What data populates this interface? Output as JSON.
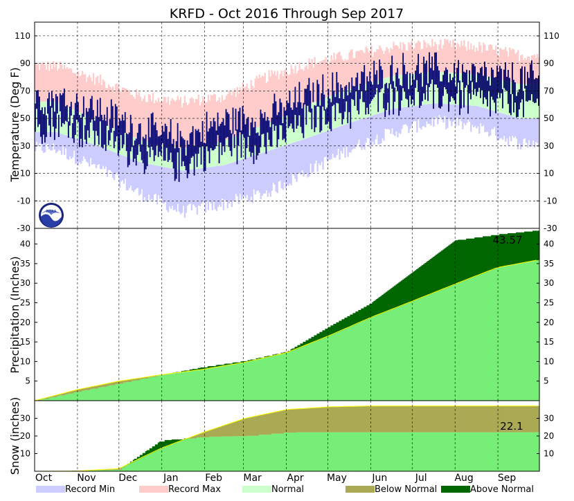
{
  "chart_data": [
    {
      "type": "area",
      "title": "KRFD - Oct 2016 Through Sep 2017",
      "ylabel": "Temperature (Deg F)",
      "ylim": [
        -30,
        120
      ],
      "yticks": [
        -30,
        -10,
        10,
        30,
        50,
        70,
        90,
        110
      ],
      "x_months": [
        "Oct",
        "Nov",
        "Dec",
        "Jan",
        "Feb",
        "Mar",
        "Apr",
        "May",
        "Jun",
        "Jul",
        "Aug",
        "Sep"
      ],
      "grid": true,
      "series": [
        {
          "name": "Record Min",
          "monthly_approx": [
            28,
            14,
            -5,
            -18,
            -12,
            -4,
            12,
            28,
            40,
            48,
            44,
            32
          ]
        },
        {
          "name": "Record Max",
          "monthly_approx": [
            88,
            78,
            66,
            62,
            66,
            80,
            90,
            96,
            102,
            104,
            102,
            96
          ]
        },
        {
          "name": "Normal",
          "monthly_approx": [
            [
              40,
              62
            ],
            [
              30,
              48
            ],
            [
              18,
              34
            ],
            [
              12,
              28
            ],
            [
              16,
              34
            ],
            [
              26,
              46
            ],
            [
              36,
              60
            ],
            [
              47,
              72
            ],
            [
              57,
              81
            ],
            [
              61,
              84
            ],
            [
              59,
              82
            ],
            [
              50,
              75
            ]
          ]
        },
        {
          "name": "Observed Daily Range",
          "monthly_approx": [
            [
              38,
              72
            ],
            [
              28,
              65
            ],
            [
              10,
              55
            ],
            [
              0,
              50
            ],
            [
              18,
              60
            ],
            [
              20,
              62
            ],
            [
              38,
              78
            ],
            [
              45,
              85
            ],
            [
              55,
              95
            ],
            [
              60,
              92
            ],
            [
              55,
              88
            ],
            [
              48,
              90
            ]
          ]
        }
      ]
    },
    {
      "type": "area",
      "ylabel": "Precipitation (Inches)",
      "ylim": [
        0,
        44
      ],
      "yticks": [
        5,
        10,
        15,
        20,
        25,
        30,
        35,
        40
      ],
      "annotation": "43.57",
      "series": [
        {
          "name": "Normal",
          "cumulative_monthly": [
            0,
            2.8,
            5.0,
            6.6,
            8.0,
            9.8,
            12.3,
            16.6,
            21.3,
            25.5,
            29.8,
            34.0,
            36.0
          ]
        },
        {
          "name": "Observed",
          "cumulative_monthly": [
            0,
            2.3,
            4.4,
            6.6,
            8.6,
            10.2,
            12.6,
            19.0,
            25.0,
            33.0,
            41.0,
            42.5,
            43.57
          ]
        }
      ]
    },
    {
      "type": "area",
      "ylabel": "Snow (inches)",
      "ylim": [
        0,
        40
      ],
      "yticks": [
        10,
        20,
        30
      ],
      "annotation": "22.1",
      "series": [
        {
          "name": "Normal",
          "cumulative_monthly": [
            0,
            0.1,
            1.5,
            13,
            22,
            30,
            35,
            36.5,
            37,
            37,
            37,
            37,
            37
          ]
        },
        {
          "name": "Observed",
          "cumulative_monthly": [
            0,
            0.3,
            1.0,
            17.5,
            19.5,
            20,
            22.1,
            22.1,
            22.1,
            22.1,
            22.1,
            22.1,
            22.1
          ]
        }
      ]
    }
  ],
  "legend": [
    {
      "label": "Record Min",
      "color": "#ccccff"
    },
    {
      "label": "Record Max",
      "color": "#ffcccc"
    },
    {
      "label": "Normal",
      "color": "#ccffcc"
    },
    {
      "label": "Below Normal",
      "color": "#aaaa55"
    },
    {
      "label": "Above Normal",
      "color": "#006600"
    }
  ],
  "colors": {
    "observed_temp": "#000066",
    "precip_normal": "#77ee77",
    "trace_line": "#ffff00"
  },
  "logo": {
    "icon": "noaa-logo-icon",
    "text": "NOAA"
  }
}
